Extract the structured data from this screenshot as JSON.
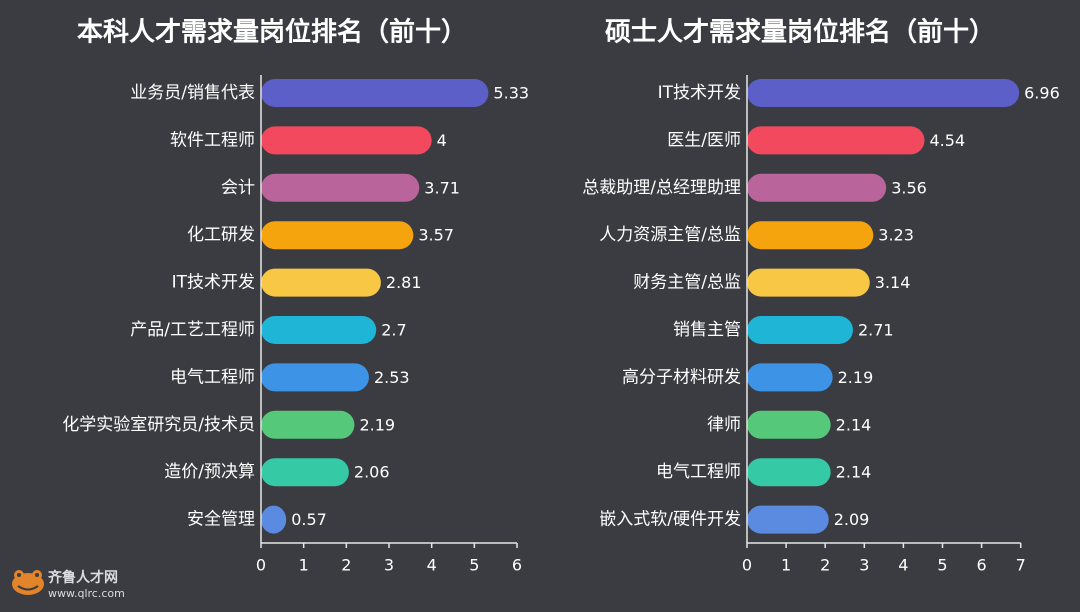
{
  "chart_data": [
    {
      "type": "bar",
      "orientation": "horizontal",
      "title": "本科人才需求量岗位排名（前十）",
      "categories": [
        "业务员/销售代表",
        "软件工程师",
        "会计",
        "化工研发",
        "IT技术开发",
        "产品/工艺工程师",
        "电气工程师",
        "化学实验室研究员/技术员",
        "造价/预决算",
        "安全管理"
      ],
      "values": [
        5.33,
        4,
        3.71,
        3.57,
        2.81,
        2.7,
        2.53,
        2.19,
        2.06,
        0.57
      ],
      "value_labels": [
        "5.33",
        "4",
        "3.71",
        "3.57",
        "2.81",
        "2.7",
        "2.53",
        "2.19",
        "2.06",
        "0.57"
      ],
      "colors": [
        "#5b5fc7",
        "#f2495f",
        "#b9649a",
        "#f6a40e",
        "#f8c845",
        "#1fb5d6",
        "#3d94e6",
        "#55c87a",
        "#35c9a6",
        "#5b8be0"
      ],
      "xlim": [
        0,
        6
      ],
      "xticks": [
        "0",
        "1",
        "2",
        "3",
        "4",
        "5",
        "6"
      ],
      "grid": false
    },
    {
      "type": "bar",
      "orientation": "horizontal",
      "title": "硕士人才需求量岗位排名（前十）",
      "categories": [
        "IT技术开发",
        "医生/医师",
        "总裁助理/总经理助理",
        "人力资源主管/总监",
        "财务主管/总监",
        "销售主管",
        "高分子材料研发",
        "律师",
        "电气工程师",
        "嵌入式软/硬件开发"
      ],
      "values": [
        6.96,
        4.54,
        3.56,
        3.23,
        3.14,
        2.71,
        2.19,
        2.14,
        2.14,
        2.09
      ],
      "value_labels": [
        "6.96",
        "4.54",
        "3.56",
        "3.23",
        "3.14",
        "2.71",
        "2.19",
        "2.14",
        "2.14",
        "2.09"
      ],
      "colors": [
        "#5b5fc7",
        "#f2495f",
        "#b9649a",
        "#f6a40e",
        "#f8c845",
        "#1fb5d6",
        "#3d94e6",
        "#55c87a",
        "#35c9a6",
        "#5b8be0"
      ],
      "xlim": [
        0,
        7
      ],
      "xticks": [
        "0",
        "1",
        "2",
        "3",
        "4",
        "5",
        "6",
        "7"
      ],
      "grid": false
    }
  ],
  "watermark": {
    "logo_icon": "frog-logo-icon",
    "name": "齐鲁人才网",
    "url": "www.qlrc.com"
  }
}
